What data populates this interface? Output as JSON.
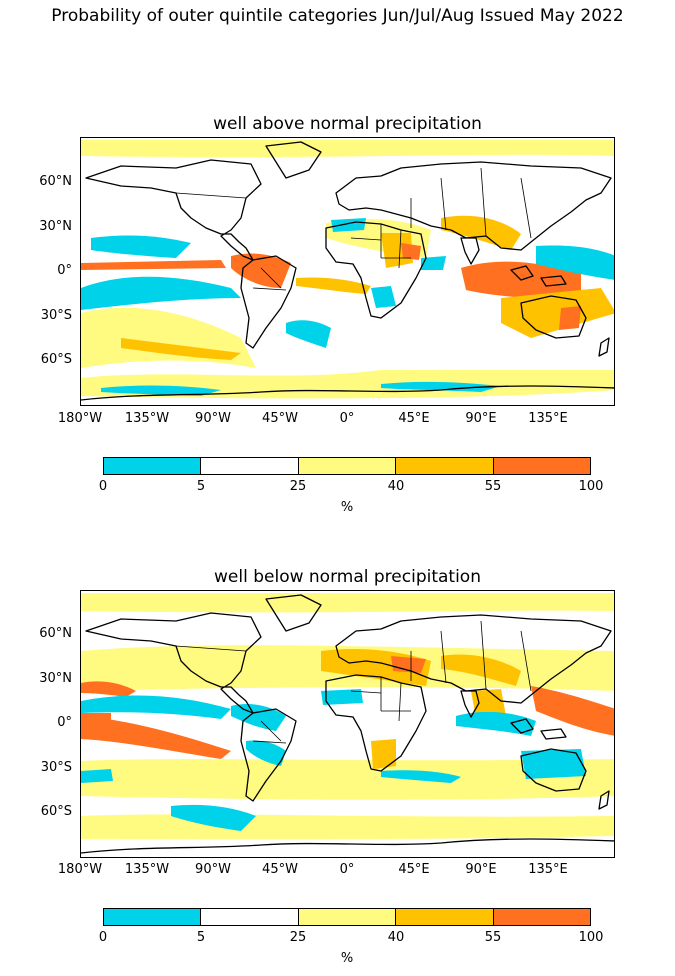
{
  "suptitle": "Probability of outer quintile categories Jun/Jul/Aug Issued May 2022",
  "panels": [
    {
      "title": "well above normal precipitation"
    },
    {
      "title": "well below normal precipitation"
    }
  ],
  "lat_ticks": [
    "60°N",
    "30°N",
    "0°",
    "30°S",
    "60°S"
  ],
  "lon_ticks": [
    "180°W",
    "135°W",
    "90°W",
    "45°W",
    "0°",
    "45°E",
    "90°E",
    "135°E"
  ],
  "colorbar": {
    "ticks": [
      "0",
      "5",
      "25",
      "40",
      "55",
      "100"
    ],
    "unit": "%",
    "colors": [
      "#00d2ea",
      "#ffffff",
      "#fffa80",
      "#ffc200",
      "#ff7020"
    ]
  }
}
